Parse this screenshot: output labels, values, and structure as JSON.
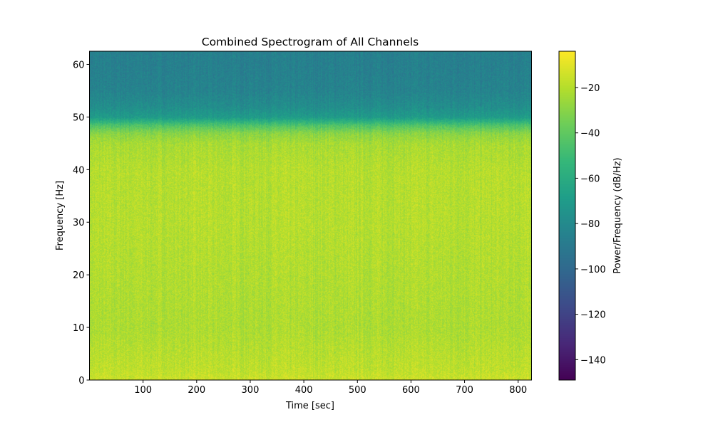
{
  "chart_data": {
    "type": "heatmap",
    "title": "Combined Spectrogram of All Channels",
    "xlabel": "Time [sec]",
    "ylabel": "Frequency [Hz]",
    "xlim": [
      0,
      825
    ],
    "ylim": [
      0,
      62.5
    ],
    "xticks": [
      100,
      200,
      300,
      400,
      500,
      600,
      700,
      800
    ],
    "yticks": [
      0,
      10,
      20,
      30,
      40,
      50,
      60
    ],
    "colormap": "viridis",
    "colorbar": {
      "label": "Power/Frequency (dB/Hz)",
      "range": [
        -149,
        -4
      ],
      "ticks": [
        -20,
        -40,
        -60,
        -80,
        -100,
        -120,
        -140
      ]
    },
    "frequency_profile_db": {
      "frequency_hz": [
        0,
        2,
        10,
        20,
        30,
        40,
        45,
        47,
        48.5,
        50,
        52,
        55,
        60,
        62.5
      ],
      "mean_power_db": [
        -15,
        -18,
        -22,
        -21,
        -20,
        -20,
        -23,
        -30,
        -45,
        -70,
        -78,
        -84,
        -86,
        -86
      ]
    },
    "grid": false
  }
}
